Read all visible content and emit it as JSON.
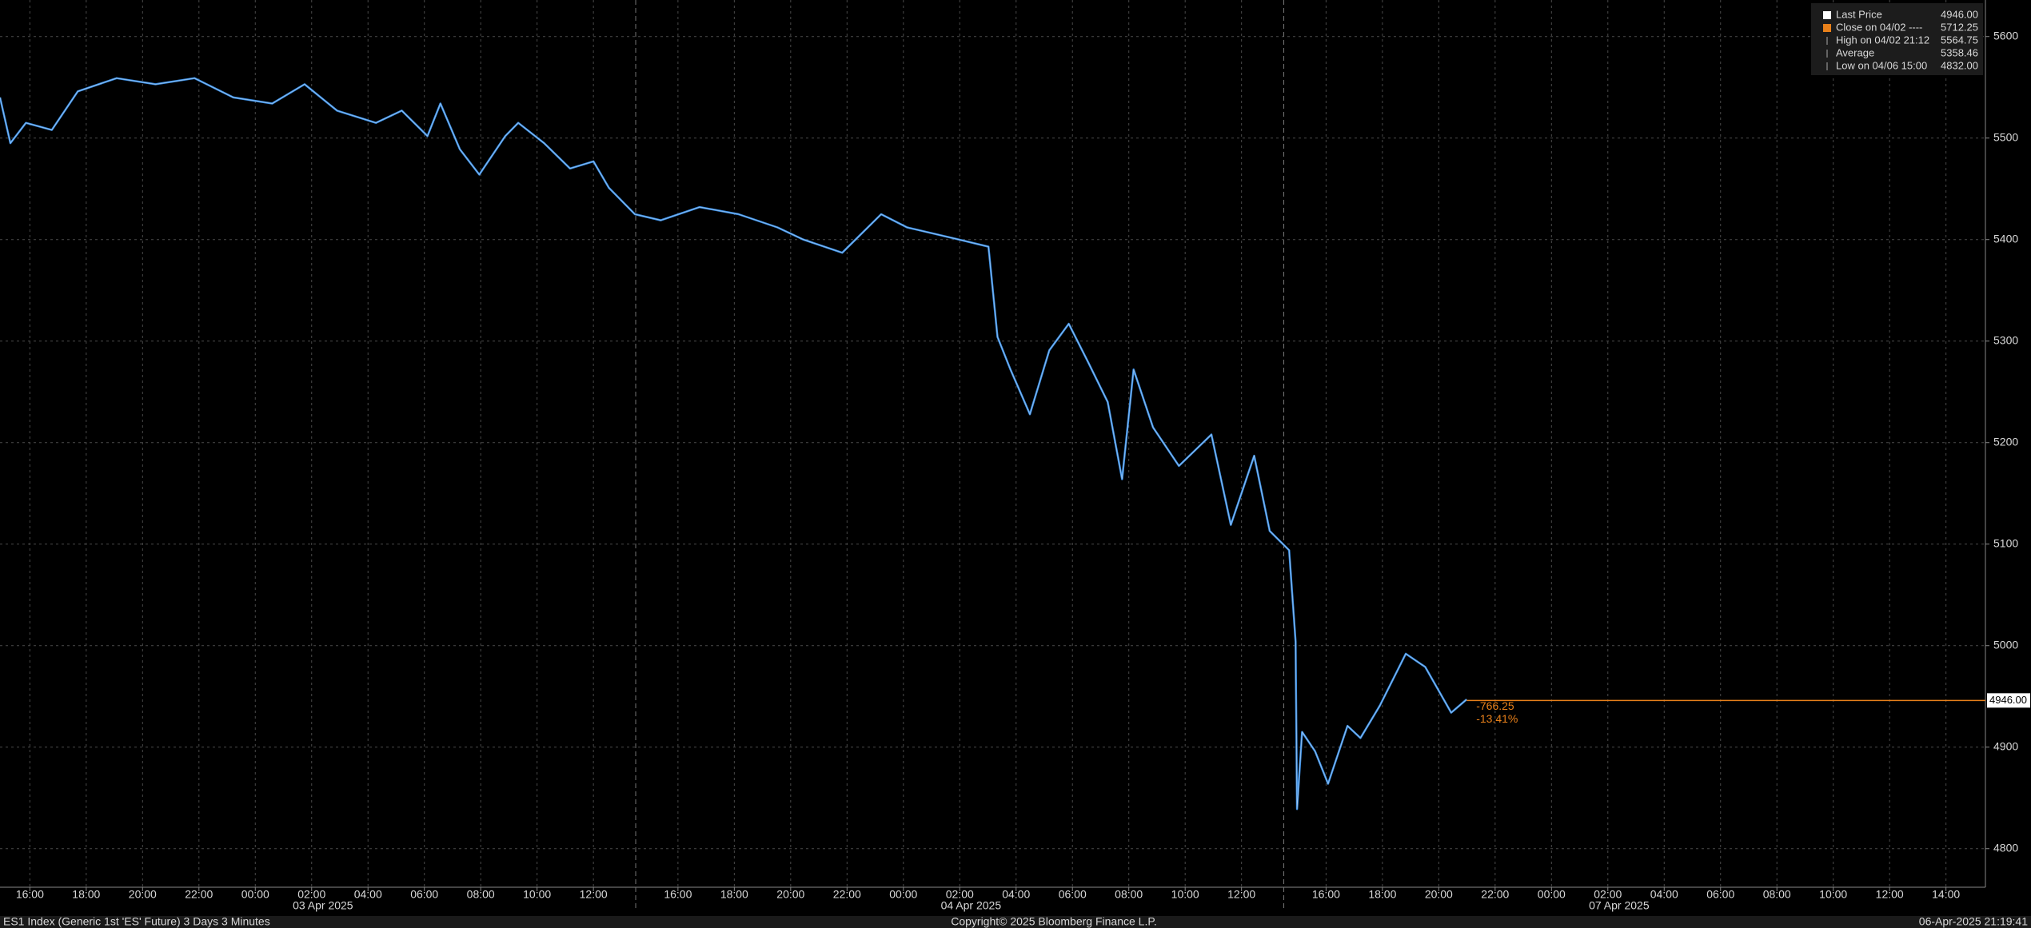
{
  "chart_data": {
    "type": "line",
    "xlim": [
      -1.06,
      69.4
    ],
    "ylim": [
      4762,
      5636
    ],
    "yticks": [
      4800,
      4900,
      5000,
      5100,
      5200,
      5300,
      5400,
      5500,
      5600
    ],
    "xticks": [
      {
        "value": 0,
        "label": "16:00"
      },
      {
        "value": 2,
        "label": "18:00"
      },
      {
        "value": 4,
        "label": "20:00"
      },
      {
        "value": 6,
        "label": "22:00"
      },
      {
        "value": 8,
        "label": "00:00"
      },
      {
        "value": 10,
        "label": "02:00"
      },
      {
        "value": 12,
        "label": "04:00"
      },
      {
        "value": 14,
        "label": "06:00"
      },
      {
        "value": 16,
        "label": "08:00"
      },
      {
        "value": 18,
        "label": "10:00"
      },
      {
        "value": 20,
        "label": "12:00"
      },
      {
        "value": 23,
        "label": "16:00"
      },
      {
        "value": 25,
        "label": "18:00"
      },
      {
        "value": 27,
        "label": "20:00"
      },
      {
        "value": 29,
        "label": "22:00"
      },
      {
        "value": 31,
        "label": "00:00"
      },
      {
        "value": 33,
        "label": "02:00"
      },
      {
        "value": 35,
        "label": "04:00"
      },
      {
        "value": 37,
        "label": "06:00"
      },
      {
        "value": 39,
        "label": "08:00"
      },
      {
        "value": 41,
        "label": "10:00"
      },
      {
        "value": 43,
        "label": "12:00"
      },
      {
        "value": 46,
        "label": "16:00"
      },
      {
        "value": 48,
        "label": "18:00"
      },
      {
        "value": 50,
        "label": "20:00"
      },
      {
        "value": 52,
        "label": "22:00"
      },
      {
        "value": 54,
        "label": "00:00"
      },
      {
        "value": 56,
        "label": "02:00"
      },
      {
        "value": 58,
        "label": "04:00"
      },
      {
        "value": 60,
        "label": "06:00"
      },
      {
        "value": 62,
        "label": "08:00"
      },
      {
        "value": 64,
        "label": "10:00"
      },
      {
        "value": 66,
        "label": "12:00"
      },
      {
        "value": 68,
        "label": "14:00"
      }
    ],
    "dates": [
      {
        "value": 10.4,
        "label": "03 Apr 2025"
      },
      {
        "value": 33.4,
        "label": "04 Apr 2025"
      },
      {
        "value": 56.4,
        "label": "07 Apr 2025"
      }
    ],
    "grid": true,
    "series": [
      {
        "name": "Last Price",
        "color": "#3a8fe6",
        "x": [
          -1.06,
          -0.69,
          -0.14,
          0.78,
          1.7,
          3.08,
          4.46,
          5.84,
          7.22,
          8.6,
          9.75,
          10.9,
          12.28,
          13.2,
          14.11,
          14.57,
          15.26,
          15.95,
          16.87,
          17.33,
          18.25,
          19.17,
          20.0,
          20.55,
          21.47,
          22.39,
          23.77,
          25.15,
          26.53,
          27.45,
          28.83,
          30.21,
          31.13,
          32.97,
          34.02,
          34.34,
          34.8,
          35.49,
          36.18,
          36.87,
          37.56,
          38.25,
          38.76,
          39.17,
          39.86,
          40.78,
          41.93,
          42.62,
          43.45,
          44.0,
          44.69,
          44.92,
          44.97,
          45.15,
          45.61,
          46.07,
          46.76,
          47.22,
          47.91,
          48.83,
          49.52,
          50.44,
          50.99
        ],
        "values": [
          5540,
          5495,
          5515,
          5508,
          5546,
          5559,
          5553,
          5559,
          5540,
          5534,
          5553,
          5527,
          5515,
          5527,
          5502,
          5534,
          5489,
          5464,
          5502,
          5515,
          5495,
          5470,
          5477,
          5451,
          5425,
          5419,
          5432,
          5425,
          5412,
          5400,
          5387,
          5425,
          5412,
          5400,
          5393,
          5304,
          5272,
          5228,
          5291,
          5317,
          5279,
          5240,
          5164,
          5272,
          5215,
          5177,
          5208,
          5119,
          5187,
          5113,
          5094,
          5004,
          4839,
          4915,
          4896,
          4864,
          4921,
          4909,
          4941,
          4992,
          4979,
          4934,
          4947
        ]
      }
    ],
    "last": {
      "value": 4946,
      "label": "4946.00",
      "change": "-766.25",
      "change_pct": "-13.41%",
      "color": "#e8801a"
    },
    "legend": [
      {
        "name": "Last Price",
        "value": "4946.00"
      },
      {
        "name": "Close on 04/02 ----",
        "value": "5712.25"
      },
      {
        "name": "High on 04/02 21:12",
        "value": "5564.75"
      },
      {
        "name": "Average",
        "value": "5358.46"
      },
      {
        "name": "Low on 04/06 15:00",
        "value": "4832.00"
      }
    ],
    "footer": {
      "left": "ES1 Index (Generic 1st 'ES' Future) 3 Days 3 Minutes",
      "center": "Copyright© 2025 Bloomberg Finance L.P.",
      "right": "06-Apr-2025 21:19:41"
    }
  }
}
